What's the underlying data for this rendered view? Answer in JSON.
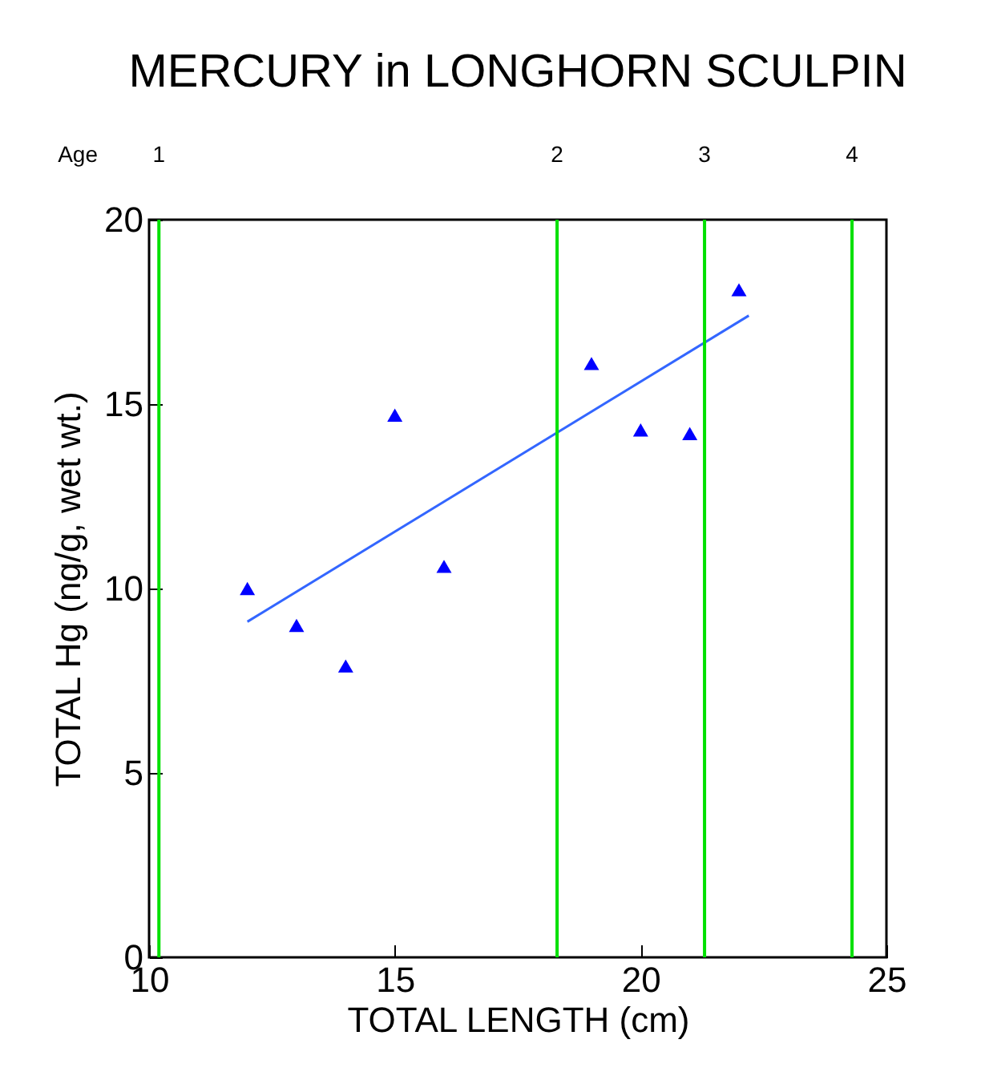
{
  "chart_data": {
    "type": "scatter",
    "title": "MERCURY in LONGHORN SCULPIN",
    "xlabel": "TOTAL LENGTH (cm)",
    "ylabel": "TOTAL Hg (ng/g, wet wt.)",
    "xlim": [
      10,
      25
    ],
    "xticks": [
      10,
      15,
      20,
      25
    ],
    "ylim": [
      0,
      20
    ],
    "yticks": [
      0,
      5,
      10,
      15,
      20
    ],
    "grid": false,
    "series": [
      {
        "type": "scatter",
        "color": "#0000ff",
        "marker": "triangle",
        "x": [
          12,
          13,
          14,
          15,
          16,
          19,
          20,
          21,
          22
        ],
        "values": [
          10.0,
          9.0,
          7.9,
          14.7,
          10.6,
          16.1,
          14.3,
          14.2,
          18.1
        ]
      },
      {
        "type": "line",
        "color": "#3366ff",
        "line_style": "solid",
        "x": [
          12,
          22.2
        ],
        "values": [
          9.1,
          17.4
        ]
      }
    ],
    "ref_lines": [
      {
        "axis": "x",
        "value": 10.2,
        "color": "#00e000"
      },
      {
        "axis": "x",
        "value": 18.3,
        "color": "#00e000"
      },
      {
        "axis": "x",
        "value": 21.3,
        "color": "#00e000"
      },
      {
        "axis": "x",
        "value": 24.3,
        "color": "#00e000"
      }
    ],
    "annotations": [
      "Age",
      "1",
      "2",
      "3",
      "4"
    ]
  }
}
